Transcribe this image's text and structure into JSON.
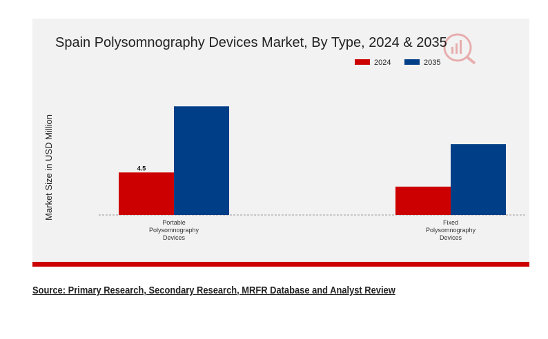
{
  "chart_data": {
    "type": "bar",
    "title": "Spain Polysomnography Devices Market, By Type, 2024 & 2035",
    "xlabel": "",
    "ylabel": "Market Size in USD Million",
    "categories": [
      [
        "Portable",
        "Polysomnography",
        "Devices"
      ],
      [
        "Fixed",
        "Polysomnography",
        "Devices"
      ]
    ],
    "series": [
      {
        "name": "2024",
        "color": "#cc0000",
        "values": [
          4.5,
          3.0
        ],
        "data_labels": [
          "4.5",
          null
        ]
      },
      {
        "name": "2035",
        "color": "#003f87",
        "values": [
          11.5,
          7.5
        ],
        "data_labels": [
          null,
          null
        ]
      }
    ],
    "ylim": [
      0,
      14
    ],
    "legend_position": "top-right",
    "grid": false
  },
  "footer": {
    "source": "Source: Primary Research, Secondary Research, MRFR Database and Analyst Review"
  },
  "colors": {
    "panel_background": "#f2f2f2",
    "accent_bar": "#cc0000",
    "watermark": "#cc0000"
  },
  "icons": {
    "watermark": "analytics-logo-icon"
  }
}
